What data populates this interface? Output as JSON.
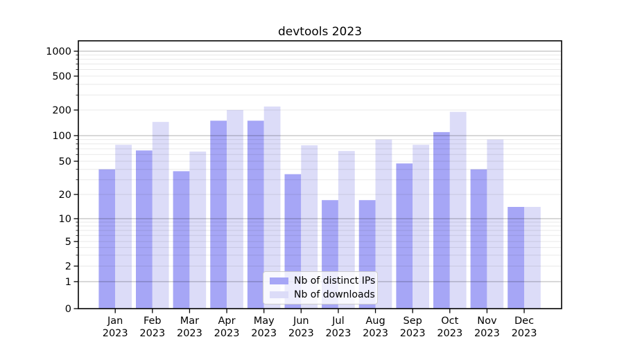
{
  "chart_data": {
    "type": "bar",
    "title": "devtools 2023",
    "categories": [
      "Jan 2023",
      "Feb 2023",
      "Mar 2023",
      "Apr 2023",
      "May 2023",
      "Jun 2023",
      "Jul 2023",
      "Aug 2023",
      "Sep 2023",
      "Oct 2023",
      "Nov 2023",
      "Dec 2023"
    ],
    "series": [
      {
        "name": "Nb of distinct IPs",
        "color": "#a6a6f6",
        "values": [
          40,
          67,
          38,
          150,
          150,
          35,
          17,
          17,
          47,
          110,
          40,
          14
        ]
      },
      {
        "name": "Nb of downloads",
        "color": "#dcdcf8",
        "values": [
          78,
          145,
          65,
          200,
          220,
          77,
          66,
          90,
          78,
          190,
          90,
          14
        ]
      }
    ],
    "yscale": "symlog",
    "yticks": [
      0,
      1,
      2,
      5,
      10,
      20,
      50,
      100,
      200,
      500,
      1000
    ],
    "grid": true,
    "legend_position": "lower center",
    "colors": {
      "axis": "#000000",
      "text": "#000000",
      "grid_major": "rgba(0,0,0,0.31)",
      "grid_minor": "rgba(0,0,0,0.09)",
      "background": "#ffffff"
    }
  }
}
